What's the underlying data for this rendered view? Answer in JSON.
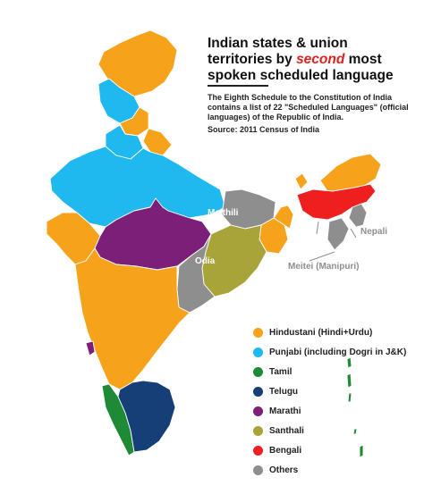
{
  "title": {
    "line1": "Indian states & union",
    "line2_pre": "territories by ",
    "line2_em": "second",
    "line2_post": " most",
    "line3": "spoken scheduled language"
  },
  "description": "The Eighth Schedule to the Constitution of India contains a list of 22 \"Scheduled Languages\" (official languages) of the Republic of India.",
  "source": "Source: 2011 Census of India",
  "colors": {
    "hindustani": "#f7a21b",
    "punjabi": "#1fb8ef",
    "tamil": "#1e8a36",
    "telugu": "#163f78",
    "marathi": "#7b1f78",
    "santhali": "#a8a43a",
    "bengali": "#ef1f1f",
    "others": "#8e8e8e"
  },
  "legend": [
    {
      "key": "hindustani",
      "label": "Hindustani (Hindi+Urdu)",
      "color": "#f7a21b"
    },
    {
      "key": "punjabi",
      "label": "Punjabi (including Dogri in J&K)",
      "color": "#1fb8ef"
    },
    {
      "key": "tamil",
      "label": "Tamil",
      "color": "#1e8a36"
    },
    {
      "key": "telugu",
      "label": "Telugu",
      "color": "#163f78"
    },
    {
      "key": "marathi",
      "label": "Marathi",
      "color": "#7b1f78"
    },
    {
      "key": "santhali",
      "label": "Santhali",
      "color": "#a8a43a"
    },
    {
      "key": "bengali",
      "label": "Bengali",
      "color": "#ef1f1f"
    },
    {
      "key": "others",
      "label": "Others",
      "color": "#8e8e8e"
    }
  ],
  "map_labels": {
    "maithili": "Maithili",
    "odia": "Odia",
    "nepali": "Nepali",
    "meitei": "Meitei (Manipuri)"
  }
}
